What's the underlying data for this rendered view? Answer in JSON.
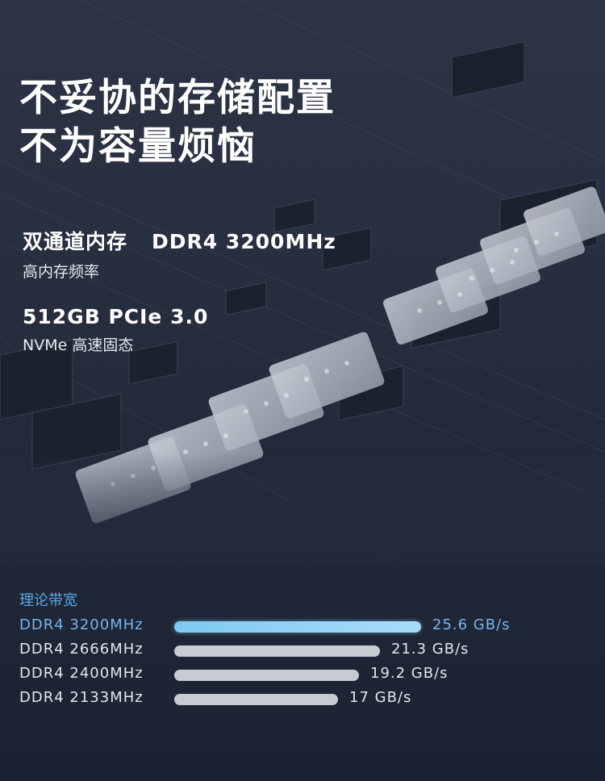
{
  "headline": {
    "line1": "不妥协的存储配置",
    "line2": "不为容量烦恼"
  },
  "memory": {
    "title": "双通道内存",
    "spec": "DDR4 3200MHz",
    "subtitle": "高内存频率"
  },
  "storage": {
    "title": "512GB PCIe 3.0",
    "subtitle": "NVMe 高速固态"
  },
  "chart_data": {
    "type": "bar",
    "orientation": "horizontal",
    "title": "理论带宽",
    "categories": [
      "DDR4 3200MHz",
      "DDR4 2666MHz",
      "DDR4 2400MHz",
      "DDR4 2133MHz"
    ],
    "values": [
      25.6,
      21.3,
      19.2,
      17
    ],
    "value_labels": [
      "25.6 GB/s",
      "21.3 GB/s",
      "19.2 GB/s",
      "17 GB/s"
    ],
    "unit": "GB/s",
    "highlight_index": 0,
    "colors": {
      "highlight": "#8fd2f5",
      "normal": "#c7cbd2",
      "title": "#5aa7e8"
    }
  }
}
